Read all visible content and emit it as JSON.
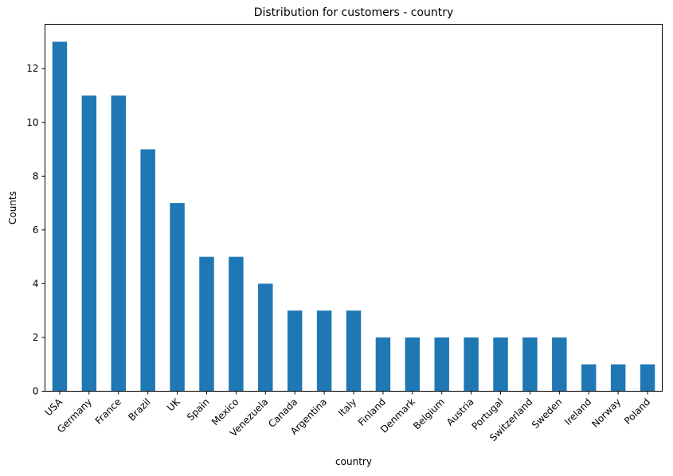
{
  "chart_data": {
    "type": "bar",
    "title": "Distribution for customers - country",
    "xlabel": "country",
    "ylabel": "Counts",
    "categories": [
      "USA",
      "Germany",
      "France",
      "Brazil",
      "UK",
      "Spain",
      "Mexico",
      "Venezuela",
      "Canada",
      "Argentina",
      "Italy",
      "Finland",
      "Denmark",
      "Belgium",
      "Austria",
      "Portugal",
      "Switzerland",
      "Sweden",
      "Ireland",
      "Norway",
      "Poland"
    ],
    "values": [
      13,
      11,
      11,
      9,
      7,
      5,
      5,
      4,
      3,
      3,
      3,
      2,
      2,
      2,
      2,
      2,
      2,
      2,
      1,
      1,
      1
    ],
    "ylim": [
      0,
      13.65
    ],
    "yticks": [
      0,
      2,
      4,
      6,
      8,
      10,
      12
    ],
    "grid": false,
    "legend": "none",
    "bar_color": "#1f77b4"
  }
}
